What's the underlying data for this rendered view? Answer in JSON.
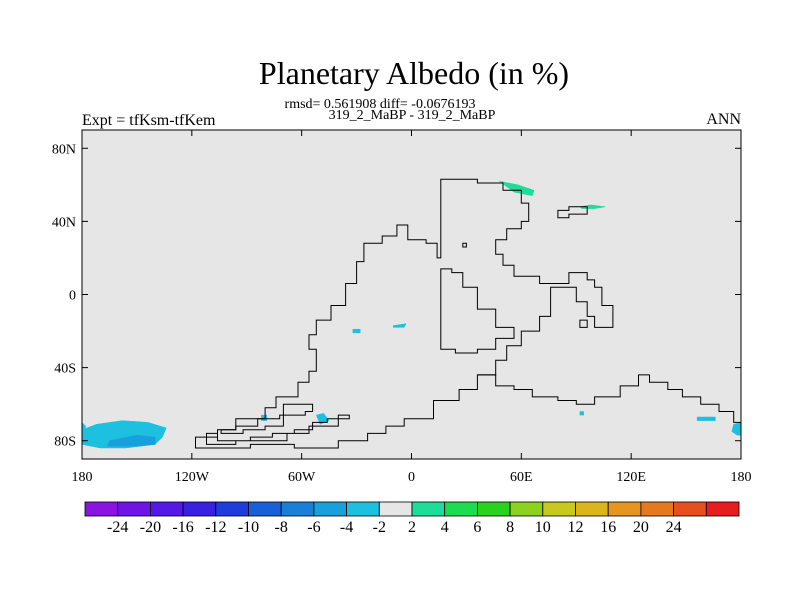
{
  "chart_data": {
    "type": "heatmap",
    "title": "Planetary Albedo (in %)",
    "stats_line": "rmsd= 0.561908 diff= -0.0676193",
    "case_line": "319_2_MaBP - 319_2_MaBP",
    "left_label": "Expt = tfKsm-tfKem",
    "right_label": "ANN",
    "xlim": [
      -180,
      180
    ],
    "ylim": [
      -90,
      90
    ],
    "x_ticks": [
      {
        "value": -180,
        "label": "180"
      },
      {
        "value": -120,
        "label": "120W"
      },
      {
        "value": -60,
        "label": "60W"
      },
      {
        "value": 0,
        "label": "0"
      },
      {
        "value": 60,
        "label": "60E"
      },
      {
        "value": 120,
        "label": "120E"
      },
      {
        "value": 180,
        "label": "180"
      }
    ],
    "y_ticks": [
      {
        "value": 80,
        "label": "80N"
      },
      {
        "value": 40,
        "label": "40N"
      },
      {
        "value": 0,
        "label": "0"
      },
      {
        "value": -40,
        "label": "40S"
      },
      {
        "value": -80,
        "label": "80S"
      }
    ],
    "background_color": "#e6e6e6",
    "colorbar": {
      "colors": [
        "#8a14e0",
        "#7014e6",
        "#5518e6",
        "#3a20e0",
        "#1f3cdc",
        "#1860d8",
        "#1880d8",
        "#18a0dc",
        "#1ec0e0",
        "#e6e6e6",
        "#1edc9a",
        "#1edc50",
        "#28d21e",
        "#8cd21e",
        "#c8c81e",
        "#dcb41e",
        "#e6961e",
        "#e6781e",
        "#e6501e",
        "#e61e1e"
      ],
      "labels": [
        "-24",
        "-20",
        "-16",
        "-12",
        "-10",
        "-8",
        "-6",
        "-4",
        "-2",
        "2",
        "4",
        "6",
        "8",
        "10",
        "12",
        "16",
        "20",
        "24"
      ]
    },
    "anomaly_patches": [
      {
        "name": "south-pacific-low",
        "value": -6,
        "color": "#1ec0e0",
        "points": [
          [
            -180,
            -74
          ],
          [
            -172,
            -71
          ],
          [
            -158,
            -69
          ],
          [
            -144,
            -70
          ],
          [
            -134,
            -73
          ],
          [
            -136,
            -78
          ],
          [
            -140,
            -82
          ],
          [
            -156,
            -84
          ],
          [
            -170,
            -84
          ],
          [
            -180,
            -82
          ]
        ]
      },
      {
        "name": "south-pacific-core",
        "value": -8,
        "color": "#18a0dc",
        "points": [
          [
            -165,
            -80
          ],
          [
            -150,
            -77
          ],
          [
            -140,
            -78
          ],
          [
            -140,
            -82
          ],
          [
            -152,
            -83
          ],
          [
            -166,
            -83
          ]
        ]
      },
      {
        "name": "dateline-west-edge",
        "value": -4,
        "color": "#1ec0e0",
        "points": [
          [
            -180,
            -70
          ],
          [
            -178,
            -72
          ],
          [
            -179,
            -76
          ],
          [
            -180,
            -77
          ]
        ]
      },
      {
        "name": "dateline-east-edge",
        "value": -4,
        "color": "#1ec0e0",
        "points": [
          [
            180,
            -70
          ],
          [
            176,
            -71
          ],
          [
            175,
            -75
          ],
          [
            178,
            -77
          ],
          [
            180,
            -77
          ]
        ]
      },
      {
        "name": "south-atlantic-spot",
        "value": -4,
        "color": "#1ec0e0",
        "points": [
          [
            -52,
            -66
          ],
          [
            -48,
            -65
          ],
          [
            -45,
            -69
          ],
          [
            -50,
            -71
          ]
        ]
      },
      {
        "name": "tropical-atlantic-spot",
        "value": -2,
        "color": "#1ec0e0",
        "points": [
          [
            -10,
            -17
          ],
          [
            -3,
            -16
          ],
          [
            -4,
            -18
          ],
          [
            -10,
            -18
          ]
        ]
      },
      {
        "name": "tropical-atlantic-small",
        "value": -2,
        "color": "#1ec0e0",
        "points": [
          [
            -32,
            -19
          ],
          [
            -28,
            -19
          ],
          [
            -28,
            -21
          ],
          [
            -32,
            -21
          ]
        ]
      },
      {
        "name": "south-indian-spot",
        "value": -2,
        "color": "#1ec0e0",
        "points": [
          [
            92,
            -64
          ],
          [
            94,
            -64
          ],
          [
            94,
            -66
          ],
          [
            92,
            -66
          ]
        ]
      },
      {
        "name": "south-pacific-east-spot",
        "value": -2,
        "color": "#1ec0e0",
        "points": [
          [
            156,
            -67
          ],
          [
            166,
            -67
          ],
          [
            166,
            -69
          ],
          [
            156,
            -69
          ]
        ]
      },
      {
        "name": "south-atlantic-small",
        "value": -2,
        "color": "#1ec0e0",
        "points": [
          [
            -82,
            -66
          ],
          [
            -79,
            -66
          ],
          [
            -79,
            -69
          ],
          [
            -82,
            -69
          ]
        ]
      },
      {
        "name": "north-tethys-positive",
        "value": 4,
        "color": "#1edc9a",
        "points": [
          [
            48,
            62
          ],
          [
            56,
            56
          ],
          [
            66,
            54
          ],
          [
            67,
            57
          ],
          [
            58,
            60
          ]
        ]
      },
      {
        "name": "northeast-positive",
        "value": 4,
        "color": "#1edc9a",
        "points": [
          [
            92,
            48
          ],
          [
            98,
            49
          ],
          [
            106,
            48
          ],
          [
            100,
            47
          ],
          [
            93,
            47
          ]
        ]
      }
    ],
    "continent_outlines": [
      {
        "name": "pangaea-main",
        "points": [
          [
            16,
            63
          ],
          [
            36,
            63
          ],
          [
            36,
            61
          ],
          [
            50,
            61
          ],
          [
            50,
            57
          ],
          [
            60,
            57
          ],
          [
            60,
            50
          ],
          [
            64,
            50
          ],
          [
            64,
            40
          ],
          [
            60,
            40
          ],
          [
            60,
            36
          ],
          [
            52,
            36
          ],
          [
            52,
            30
          ],
          [
            46,
            30
          ],
          [
            46,
            22
          ],
          [
            50,
            22
          ],
          [
            50,
            16
          ],
          [
            56,
            16
          ],
          [
            56,
            10
          ],
          [
            70,
            10
          ],
          [
            70,
            6
          ],
          [
            86,
            6
          ],
          [
            86,
            12
          ],
          [
            96,
            12
          ],
          [
            96,
            8
          ],
          [
            100,
            8
          ],
          [
            100,
            4
          ],
          [
            104,
            4
          ],
          [
            104,
            -6
          ],
          [
            110,
            -6
          ],
          [
            110,
            -18
          ],
          [
            100,
            -18
          ],
          [
            100,
            -12
          ],
          [
            96,
            -12
          ],
          [
            96,
            -4
          ],
          [
            90,
            -4
          ],
          [
            90,
            4
          ],
          [
            76,
            4
          ],
          [
            76,
            -12
          ],
          [
            70,
            -12
          ],
          [
            70,
            -20
          ],
          [
            60,
            -20
          ],
          [
            60,
            -28
          ],
          [
            52,
            -28
          ],
          [
            52,
            -36
          ],
          [
            46,
            -36
          ],
          [
            46,
            -44
          ],
          [
            36,
            -44
          ],
          [
            36,
            -52
          ],
          [
            26,
            -52
          ],
          [
            26,
            -58
          ],
          [
            12,
            -58
          ],
          [
            12,
            -68
          ],
          [
            -4,
            -68
          ],
          [
            -4,
            -72
          ],
          [
            -14,
            -72
          ],
          [
            -14,
            -76
          ],
          [
            -24,
            -76
          ],
          [
            -24,
            -80
          ],
          [
            -40,
            -80
          ],
          [
            -40,
            -84
          ],
          [
            -64,
            -84
          ],
          [
            -64,
            -82
          ],
          [
            -88,
            -82
          ],
          [
            -88,
            -84
          ],
          [
            -118,
            -84
          ],
          [
            -118,
            -78
          ],
          [
            -106,
            -78
          ],
          [
            -106,
            -74
          ],
          [
            -96,
            -74
          ],
          [
            -96,
            -68
          ],
          [
            -80,
            -68
          ],
          [
            -80,
            -62
          ],
          [
            -74,
            -62
          ],
          [
            -74,
            -56
          ],
          [
            -62,
            -56
          ],
          [
            -62,
            -48
          ],
          [
            -56,
            -48
          ],
          [
            -56,
            -42
          ],
          [
            -52,
            -42
          ],
          [
            -52,
            -30
          ],
          [
            -56,
            -30
          ],
          [
            -56,
            -22
          ],
          [
            -52,
            -22
          ],
          [
            -52,
            -14
          ],
          [
            -44,
            -14
          ],
          [
            -44,
            -6
          ],
          [
            -36,
            -6
          ],
          [
            -36,
            6
          ],
          [
            -30,
            6
          ],
          [
            -30,
            18
          ],
          [
            -26,
            18
          ],
          [
            -26,
            28
          ],
          [
            -16,
            28
          ],
          [
            -16,
            32
          ],
          [
            -8,
            32
          ],
          [
            -8,
            38
          ],
          [
            -2,
            38
          ],
          [
            -2,
            30
          ],
          [
            8,
            30
          ],
          [
            8,
            28
          ],
          [
            14,
            28
          ],
          [
            14,
            20
          ],
          [
            16,
            20
          ],
          [
            16,
            63
          ]
        ]
      },
      {
        "name": "tethys-inner",
        "points": [
          [
            16,
            14
          ],
          [
            16,
            -30
          ],
          [
            24,
            -30
          ],
          [
            24,
            -32
          ],
          [
            36,
            -32
          ],
          [
            36,
            -30
          ],
          [
            46,
            -30
          ],
          [
            46,
            -24
          ],
          [
            56,
            -24
          ],
          [
            56,
            -18
          ],
          [
            46,
            -18
          ],
          [
            46,
            -8
          ],
          [
            36,
            -8
          ],
          [
            36,
            4
          ],
          [
            28,
            4
          ],
          [
            28,
            12
          ],
          [
            22,
            12
          ],
          [
            22,
            14
          ]
        ]
      },
      {
        "name": "south-peninsula",
        "points": [
          [
            -70,
            -60
          ],
          [
            -54,
            -60
          ],
          [
            -54,
            -64
          ],
          [
            -58,
            -64
          ],
          [
            -58,
            -66
          ],
          [
            -72,
            -66
          ],
          [
            -72,
            -68
          ],
          [
            -84,
            -68
          ],
          [
            -84,
            -72
          ],
          [
            -96,
            -72
          ],
          [
            -96,
            -74
          ],
          [
            -104,
            -74
          ],
          [
            -104,
            -76
          ],
          [
            -92,
            -76
          ],
          [
            -92,
            -74
          ],
          [
            -80,
            -74
          ],
          [
            -80,
            -72
          ],
          [
            -70,
            -72
          ]
        ]
      },
      {
        "name": "south-inner-ridge",
        "points": [
          [
            -112,
            -76
          ],
          [
            -106,
            -76
          ],
          [
            -106,
            -80
          ],
          [
            -88,
            -80
          ],
          [
            -88,
            -78
          ],
          [
            -76,
            -78
          ],
          [
            -76,
            -76
          ],
          [
            -64,
            -76
          ],
          [
            -64,
            -74
          ],
          [
            -54,
            -74
          ],
          [
            -54,
            -70
          ],
          [
            -46,
            -70
          ],
          [
            -46,
            -68
          ],
          [
            -34,
            -68
          ],
          [
            -34,
            -66
          ],
          [
            -40,
            -66
          ],
          [
            -40,
            -72
          ],
          [
            -56,
            -72
          ],
          [
            -56,
            -76
          ],
          [
            -68,
            -76
          ],
          [
            -68,
            -80
          ],
          [
            -96,
            -80
          ],
          [
            -96,
            -82
          ],
          [
            -112,
            -82
          ]
        ]
      },
      {
        "name": "east-gondwana",
        "points": [
          [
            36,
            -44
          ],
          [
            46,
            -44
          ],
          [
            46,
            -50
          ],
          [
            56,
            -50
          ],
          [
            56,
            -52
          ],
          [
            66,
            -52
          ],
          [
            66,
            -56
          ],
          [
            80,
            -56
          ],
          [
            80,
            -58
          ],
          [
            90,
            -58
          ],
          [
            90,
            -60
          ],
          [
            100,
            -60
          ],
          [
            100,
            -56
          ],
          [
            114,
            -56
          ],
          [
            114,
            -50
          ],
          [
            124,
            -50
          ],
          [
            124,
            -44
          ],
          [
            130,
            -44
          ],
          [
            130,
            -48
          ],
          [
            140,
            -48
          ],
          [
            140,
            -52
          ],
          [
            148,
            -52
          ],
          [
            148,
            -56
          ],
          [
            158,
            -56
          ],
          [
            158,
            -60
          ],
          [
            168,
            -60
          ],
          [
            168,
            -64
          ],
          [
            176,
            -64
          ],
          [
            176,
            -70
          ],
          [
            180,
            -70
          ]
        ]
      },
      {
        "name": "ne-island",
        "points": [
          [
            80,
            42
          ],
          [
            80,
            46
          ],
          [
            86,
            46
          ],
          [
            86,
            48
          ],
          [
            96,
            48
          ],
          [
            96,
            44
          ],
          [
            86,
            44
          ],
          [
            86,
            42
          ]
        ]
      },
      {
        "name": "small-island-1",
        "points": [
          [
            28,
            28
          ],
          [
            30,
            28
          ],
          [
            30,
            26
          ],
          [
            28,
            26
          ]
        ]
      },
      {
        "name": "small-island-2",
        "points": [
          [
            92,
            -14
          ],
          [
            96,
            -14
          ],
          [
            96,
            -18
          ],
          [
            92,
            -18
          ]
        ]
      }
    ]
  }
}
